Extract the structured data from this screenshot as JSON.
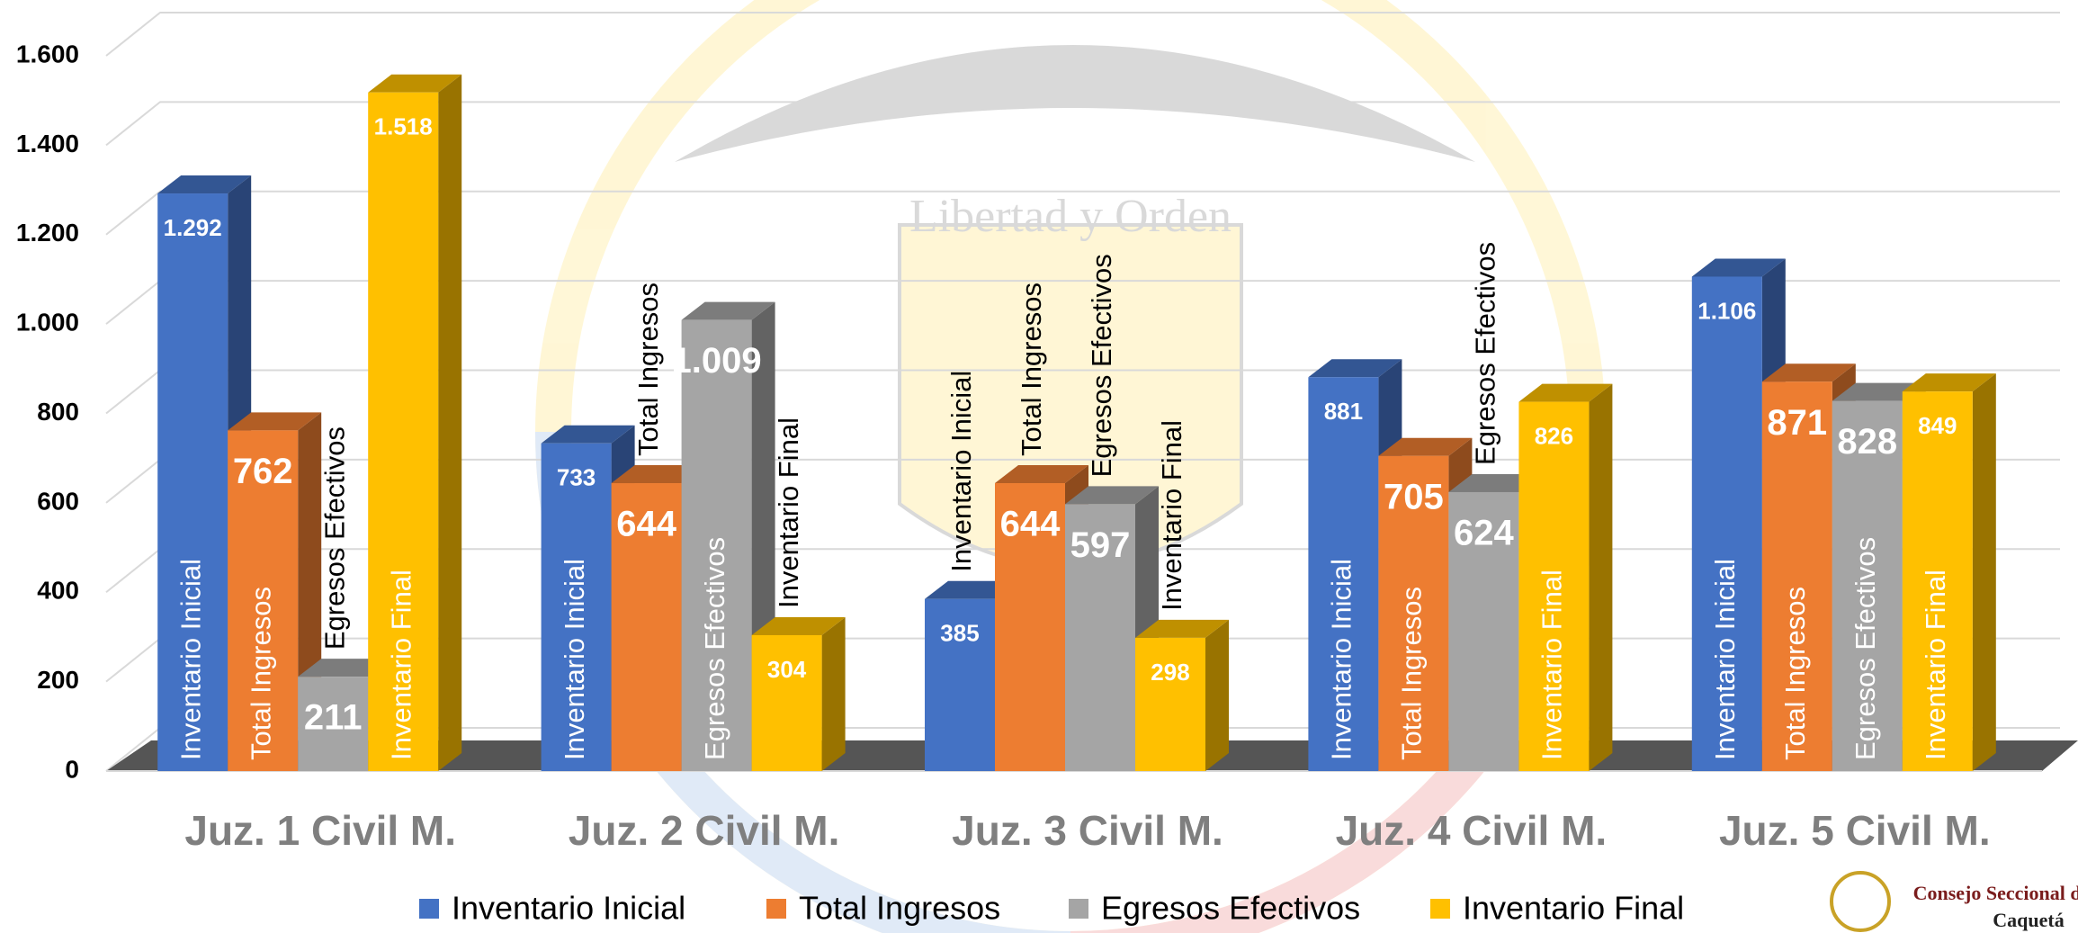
{
  "chart_data": {
    "type": "bar3d",
    "categories": [
      "Juz. 1 Civil M.",
      "Juz. 2 Civil M.",
      "Juz. 3 Civil M.",
      "Juz. 4 Civil M.",
      "Juz. 5 Civil M."
    ],
    "series": [
      {
        "name": "Inventario Inicial",
        "color": "#4472c4",
        "values": [
          1292,
          733,
          385,
          881,
          1106
        ],
        "value_labels": [
          "1.292",
          "733",
          "385",
          "881",
          "1.106"
        ]
      },
      {
        "name": "Total Ingresos",
        "color": "#ed7d31",
        "values": [
          762,
          644,
          644,
          705,
          871
        ],
        "value_labels": [
          "762",
          "644",
          "644",
          "705",
          "871"
        ]
      },
      {
        "name": "Egresos Efectivos",
        "color": "#a5a5a5",
        "values": [
          211,
          1009,
          597,
          624,
          828
        ],
        "value_labels": [
          "211",
          "1.009",
          "597",
          "624",
          "828"
        ]
      },
      {
        "name": "Inventario Final",
        "color": "#ffc000",
        "values": [
          1518,
          304,
          298,
          826,
          849
        ],
        "value_labels": [
          "1.518",
          "304",
          "298",
          "826",
          "849"
        ]
      }
    ],
    "ylim": [
      0,
      1600
    ],
    "yticks": [
      0,
      200,
      400,
      600,
      800,
      {
        "value": 1000,
        "label": "1.000"
      },
      {
        "value": 1200,
        "label": "1.200"
      },
      {
        "value": 1400,
        "label": "1.400"
      },
      {
        "value": 1600,
        "label": "1.600"
      }
    ],
    "grid": true,
    "legend": "bottom"
  },
  "watermark": {
    "motto": "Libertad y Orden"
  },
  "logo": {
    "lines": [
      "Consejo Seccional de",
      "Caquetá"
    ]
  }
}
